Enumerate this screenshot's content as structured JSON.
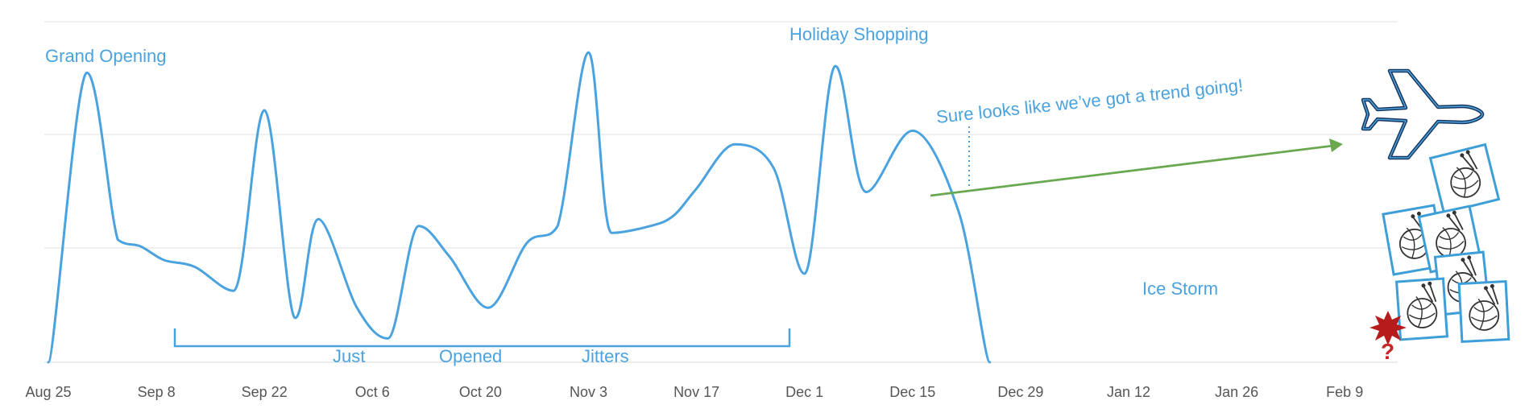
{
  "chart_data": {
    "type": "line",
    "title": "",
    "xlabel": "",
    "ylabel": "",
    "grid": true,
    "x_ticks": [
      "Aug 25",
      "Sep 8",
      "Sep 22",
      "Oct 6",
      "Oct 20",
      "Nov 3",
      "Nov 17",
      "Dec 1",
      "Dec 15",
      "Dec 29",
      "Jan 12",
      "Jan 26",
      "Feb 9"
    ],
    "ylim": [
      0,
      100
    ],
    "series": [
      {
        "x": [
          0,
          2.5,
          4.5,
          6,
          7.5,
          9.5,
          12,
          14,
          16,
          17.5,
          20,
          22,
          24,
          26,
          28.5,
          31,
          33,
          35,
          36.5,
          39,
          40.5,
          42,
          44.5,
          47,
          49,
          51,
          53,
          56,
          59,
          61,
          63,
          65,
          67,
          70,
          73.5,
          76.5,
          78,
          80.5,
          82.5,
          85,
          87.5,
          89
        ],
        "values": [
          0,
          85,
          36,
          34,
          30,
          28,
          21,
          74,
          13,
          42,
          16,
          7,
          40,
          31,
          16,
          35,
          40,
          91,
          38,
          40,
          43,
          51,
          64,
          57,
          26,
          87,
          50,
          68,
          44,
          0,
          0,
          0,
          0,
          0,
          0,
          0,
          0,
          0,
          0,
          0,
          0,
          0
        ]
      }
    ],
    "line_color": "#4AA3DF",
    "annotations": {
      "grand_opening": "Grand Opening",
      "holiday_shopping": "Holiday Shopping",
      "trend_note": "Sure looks like we’ve got a trend going!",
      "ice_storm": "Ice Storm",
      "jitters_1": "Just",
      "jitters_2": "Opened",
      "jitters_3": "Jitters",
      "question": "?"
    },
    "trend_color": "#6AA84F"
  }
}
